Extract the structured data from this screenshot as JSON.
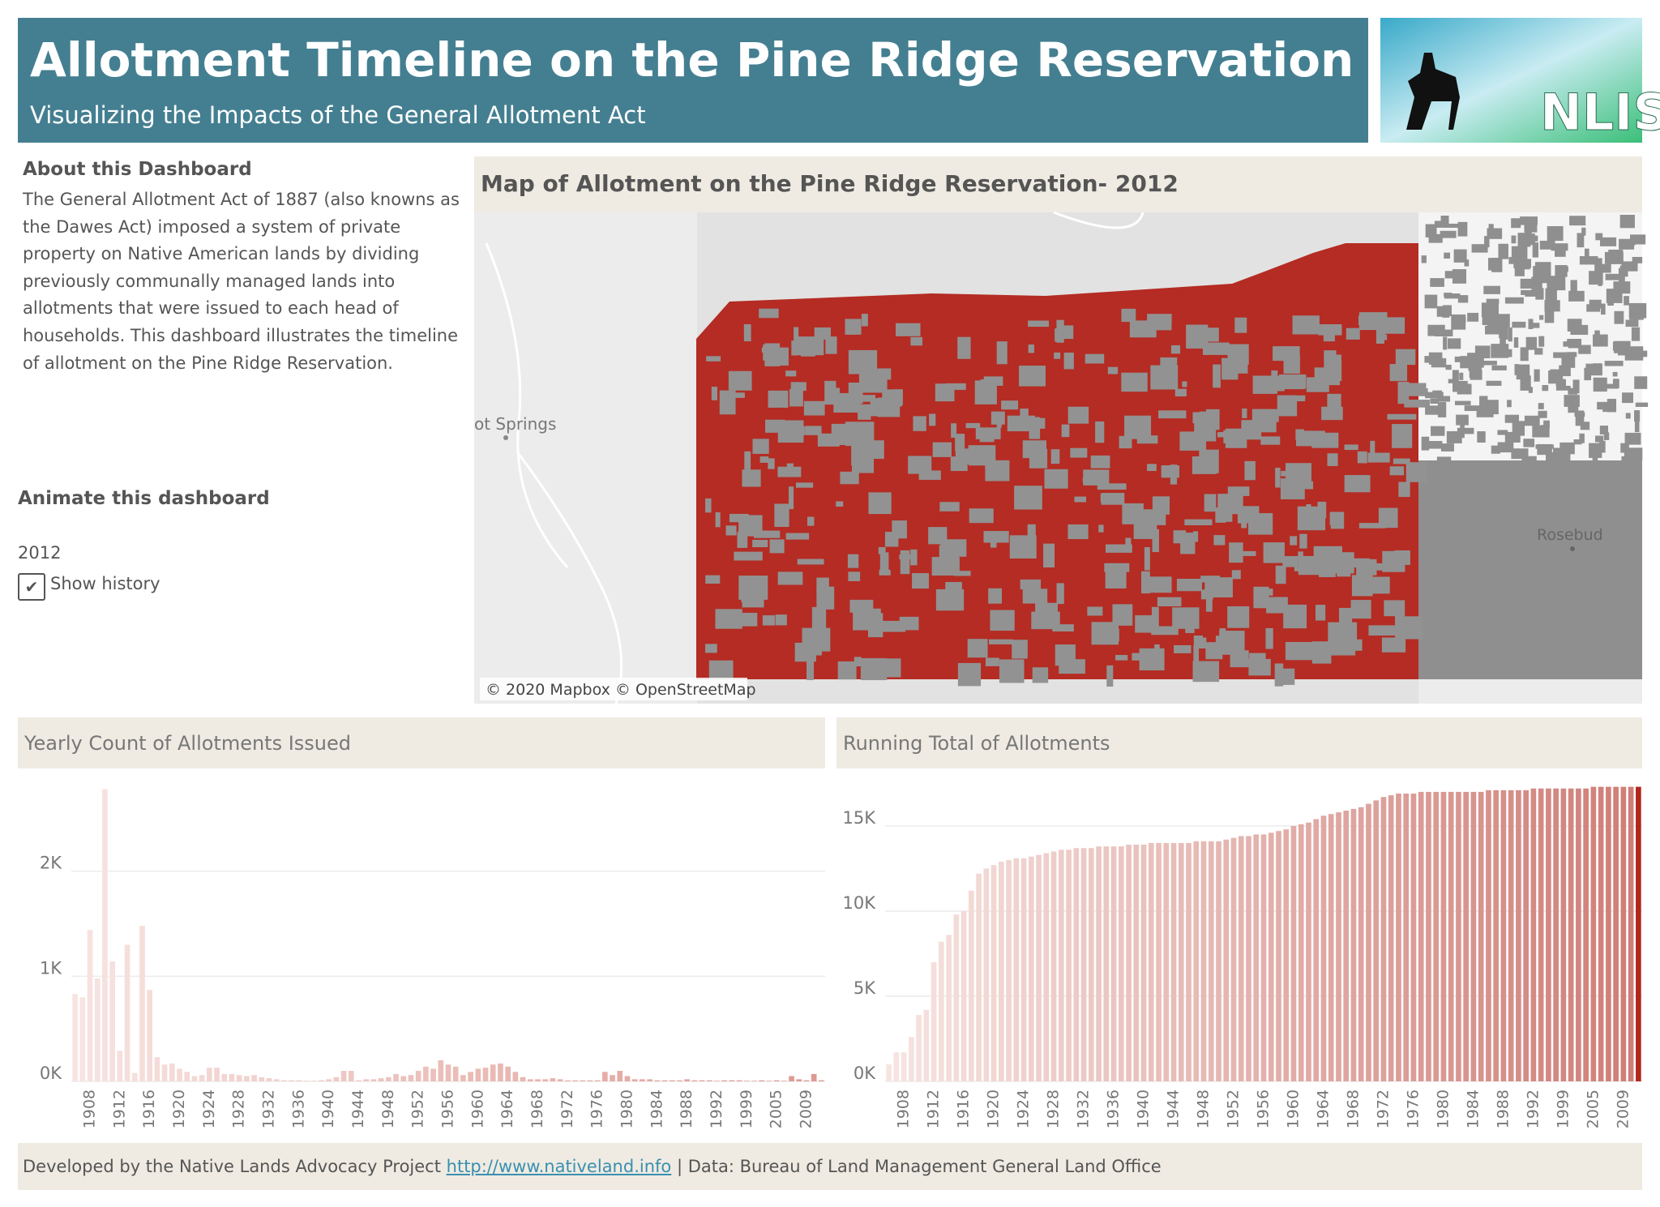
{
  "header": {
    "title": "Allotment Timeline on the Pine Ridge Reservation",
    "subtitle": "Visualizing the Impacts of the General Allotment Act"
  },
  "logo": {
    "text": "NLIS"
  },
  "about": {
    "heading": "About this Dashboard",
    "body": "The General Allotment Act of 1887 (also knowns as the Dawes Act) imposed a system of private property on Native American lands by dividing previously communally managed lands into allotments that were issued to each head of households.  This dashboard illustrates the timeline of allotment on the Pine Ridge Reservation."
  },
  "animate": {
    "heading": "Animate this dashboard",
    "year": "2012",
    "checkbox_label": "Show history"
  },
  "map": {
    "title": "Map of Allotment on the Pine Ridge Reservation- 2012",
    "attribution": "© 2020 Mapbox © OpenStreetMap",
    "places": [
      "ot Springs",
      "Rosebud"
    ]
  },
  "footer": {
    "text_before": "Developed by the Native Lands Advocacy Project",
    "link": "http://www.nativeland.info",
    "text_after": "| Data: Bureau of Land Management General Land Office"
  },
  "chart_data": [
    {
      "type": "bar",
      "title": "Yearly Count of Allotments Issued",
      "categories": [
        null,
        null,
        "1908",
        null,
        null,
        null,
        "1912",
        null,
        null,
        null,
        "1916",
        null,
        null,
        null,
        "1920",
        null,
        null,
        null,
        "1924",
        null,
        null,
        null,
        "1928",
        null,
        null,
        null,
        "1932",
        null,
        null,
        null,
        "1936",
        null,
        null,
        null,
        "1940",
        null,
        null,
        null,
        "1944",
        null,
        null,
        null,
        "1948",
        null,
        null,
        null,
        "1952",
        null,
        null,
        null,
        "1956",
        null,
        null,
        null,
        "1960",
        null,
        null,
        null,
        "1964",
        null,
        null,
        null,
        "1968",
        null,
        null,
        null,
        "1972",
        null,
        null,
        null,
        "1976",
        null,
        null,
        null,
        "1980",
        null,
        null,
        null,
        "1984",
        null,
        null,
        null,
        "1988",
        null,
        null,
        null,
        "1992",
        null,
        null,
        null,
        "1999",
        null,
        null,
        null,
        "2005",
        null,
        null,
        null,
        "2009",
        null,
        null
      ],
      "values": [
        830,
        800,
        1440,
        980,
        2780,
        1140,
        290,
        1300,
        80,
        1480,
        870,
        230,
        160,
        170,
        120,
        90,
        50,
        60,
        130,
        130,
        70,
        70,
        60,
        50,
        60,
        40,
        30,
        20,
        10,
        10,
        10,
        5,
        5,
        10,
        20,
        40,
        100,
        100,
        10,
        20,
        20,
        30,
        40,
        70,
        50,
        60,
        100,
        140,
        120,
        200,
        160,
        140,
        60,
        90,
        120,
        130,
        160,
        170,
        140,
        90,
        40,
        20,
        20,
        20,
        30,
        20,
        10,
        10,
        10,
        10,
        10,
        90,
        60,
        100,
        50,
        20,
        20,
        20,
        10,
        10,
        10,
        10,
        20,
        10,
        10,
        10,
        5,
        10,
        10,
        10,
        5,
        5,
        10,
        5,
        10,
        5,
        50,
        20,
        10,
        70,
        10
      ],
      "ylim": [
        0,
        2900
      ],
      "yticks": [
        {
          "value": 0,
          "label": "0K"
        },
        {
          "value": 1000,
          "label": "1K"
        },
        {
          "value": 2000,
          "label": "2K"
        }
      ],
      "grid": true,
      "color_range": [
        "#f7e4e1",
        "#df9790"
      ]
    },
    {
      "type": "bar",
      "title": "Running Total of Allotments",
      "categories": [
        null,
        null,
        "1908",
        null,
        null,
        null,
        "1912",
        null,
        null,
        null,
        "1916",
        null,
        null,
        null,
        "1920",
        null,
        null,
        null,
        "1924",
        null,
        null,
        null,
        "1928",
        null,
        null,
        null,
        "1932",
        null,
        null,
        null,
        "1936",
        null,
        null,
        null,
        "1940",
        null,
        null,
        null,
        "1944",
        null,
        null,
        null,
        "1948",
        null,
        null,
        null,
        "1952",
        null,
        null,
        null,
        "1956",
        null,
        null,
        null,
        "1960",
        null,
        null,
        null,
        "1964",
        null,
        null,
        null,
        "1968",
        null,
        null,
        null,
        "1972",
        null,
        null,
        null,
        "1976",
        null,
        null,
        null,
        "1980",
        null,
        null,
        null,
        "1984",
        null,
        null,
        null,
        "1988",
        null,
        null,
        null,
        "1992",
        null,
        null,
        null,
        "1999",
        null,
        null,
        null,
        "2005",
        null,
        null,
        null,
        "2009",
        null,
        null
      ],
      "values": [
        1000,
        1700,
        1700,
        2600,
        3900,
        4200,
        7000,
        8200,
        8600,
        9800,
        10000,
        11200,
        12200,
        12500,
        12700,
        12900,
        13000,
        13100,
        13100,
        13200,
        13300,
        13400,
        13500,
        13600,
        13600,
        13700,
        13700,
        13700,
        13800,
        13800,
        13800,
        13800,
        13900,
        13900,
        13900,
        14000,
        14000,
        14000,
        14000,
        14000,
        14000,
        14100,
        14100,
        14100,
        14100,
        14200,
        14300,
        14400,
        14400,
        14500,
        14500,
        14600,
        14700,
        14800,
        15000,
        15100,
        15200,
        15400,
        15600,
        15700,
        15800,
        15900,
        16000,
        16100,
        16300,
        16500,
        16700,
        16800,
        16900,
        16900,
        16900,
        17000,
        17000,
        17000,
        17000,
        17000,
        17000,
        17000,
        17000,
        17000,
        17100,
        17100,
        17100,
        17100,
        17100,
        17100,
        17200,
        17200,
        17200,
        17200,
        17200,
        17200,
        17200,
        17200,
        17300,
        17300,
        17300,
        17300,
        17300,
        17300,
        17300
      ],
      "ylim": [
        0,
        17900
      ],
      "yticks": [
        {
          "value": 0,
          "label": "0K"
        },
        {
          "value": 5000,
          "label": "5K"
        },
        {
          "value": 10000,
          "label": "10K"
        },
        {
          "value": 15000,
          "label": "15K"
        }
      ],
      "grid": true,
      "color_range": [
        "#f7e4e1",
        "#cf7d76"
      ],
      "highlight_color": "#b3261e"
    }
  ]
}
